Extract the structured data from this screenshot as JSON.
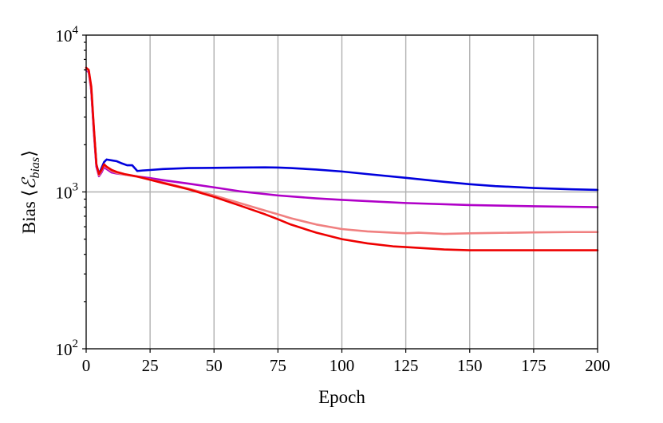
{
  "chart_data": {
    "type": "line",
    "title": "",
    "xlabel": "Epoch",
    "ylabel_parts": {
      "text": "Bias ⟨",
      "math": "ℰ",
      "sub": "bias",
      "close": "⟩"
    },
    "xlim": [
      0,
      200
    ],
    "ylim": [
      100,
      10000
    ],
    "yscale": "log",
    "grid": true,
    "x_ticks": [
      0,
      25,
      50,
      75,
      100,
      125,
      150,
      175,
      200
    ],
    "x_tick_labels": [
      "0",
      "25",
      "50",
      "75",
      "100",
      "125",
      "150",
      "175",
      "200"
    ],
    "y_ticks": [
      100,
      1000,
      10000
    ],
    "y_tick_labels": [
      {
        "base": "10",
        "exp": "2"
      },
      {
        "base": "10",
        "exp": "3"
      },
      {
        "base": "10",
        "exp": "4"
      }
    ],
    "series": [
      {
        "color": "#0000dd",
        "x": [
          0,
          1,
          2,
          3,
          4,
          5,
          6,
          7,
          8,
          10,
          12,
          14,
          16,
          18,
          19,
          20,
          22,
          25,
          30,
          40,
          50,
          60,
          70,
          75,
          80,
          90,
          100,
          110,
          125,
          140,
          150,
          160,
          175,
          190,
          200
        ],
        "y": [
          6000,
          5900,
          4500,
          2500,
          1500,
          1300,
          1420,
          1550,
          1610,
          1590,
          1570,
          1520,
          1480,
          1480,
          1420,
          1360,
          1370,
          1380,
          1400,
          1420,
          1425,
          1430,
          1435,
          1430,
          1420,
          1390,
          1350,
          1300,
          1230,
          1160,
          1120,
          1090,
          1060,
          1040,
          1030
        ]
      },
      {
        "color": "#b000c8",
        "x": [
          0,
          1,
          2,
          3,
          4,
          5,
          6,
          7,
          8,
          10,
          12,
          15,
          20,
          25,
          30,
          40,
          50,
          60,
          75,
          90,
          100,
          125,
          150,
          175,
          200
        ],
        "y": [
          6000,
          5800,
          4400,
          2400,
          1450,
          1260,
          1330,
          1440,
          1400,
          1330,
          1310,
          1290,
          1255,
          1225,
          1190,
          1130,
          1070,
          1010,
          950,
          910,
          890,
          850,
          825,
          810,
          800
        ]
      },
      {
        "color": "#f08080",
        "x": [
          0,
          1,
          2,
          3,
          4,
          5,
          6,
          7,
          8,
          10,
          12,
          15,
          20,
          25,
          30,
          40,
          50,
          60,
          70,
          75,
          80,
          90,
          100,
          110,
          120,
          125,
          130,
          140,
          150,
          160,
          175,
          190,
          200
        ],
        "y": [
          6100,
          5900,
          4500,
          2500,
          1500,
          1280,
          1360,
          1480,
          1430,
          1360,
          1320,
          1290,
          1250,
          1200,
          1150,
          1050,
          950,
          850,
          760,
          720,
          680,
          620,
          580,
          560,
          550,
          545,
          550,
          540,
          545,
          548,
          552,
          555,
          555
        ]
      },
      {
        "color": "#ee0000",
        "x": [
          0,
          1,
          2,
          3,
          4,
          5,
          6,
          7,
          8,
          10,
          12,
          15,
          20,
          25,
          30,
          40,
          50,
          60,
          70,
          75,
          80,
          90,
          100,
          110,
          120,
          125,
          130,
          140,
          150,
          160,
          175,
          190,
          200
        ],
        "y": [
          6200,
          6000,
          4700,
          2600,
          1500,
          1300,
          1380,
          1500,
          1450,
          1380,
          1340,
          1300,
          1255,
          1195,
          1140,
          1040,
          930,
          820,
          720,
          670,
          620,
          550,
          500,
          470,
          450,
          445,
          440,
          430,
          425,
          425,
          425,
          425,
          425
        ]
      }
    ]
  }
}
